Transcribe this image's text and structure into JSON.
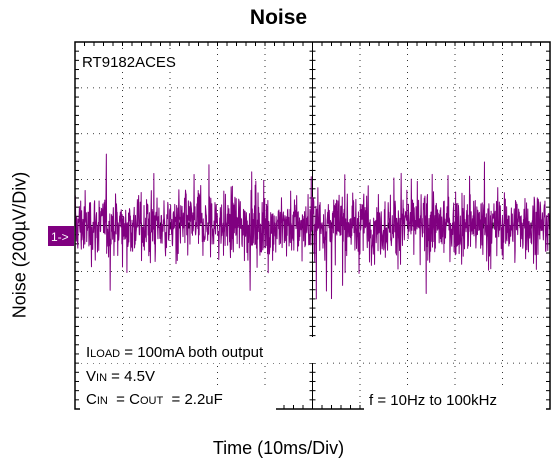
{
  "chart_data": {
    "type": "line",
    "title": "Noise",
    "xlabel": "Time  (10ms/Div)",
    "ylabel": "Noise  (200µV/Div)",
    "channel_marker": "1->",
    "device_label": "RT9182ACES",
    "annotations": {
      "iload": {
        "main": "I",
        "sub": "LOAD",
        "rest": " = 100mA both output"
      },
      "vin": {
        "main": "V",
        "sub": "IN",
        "rest": " = 4.5V"
      },
      "cin_cout": {
        "c1": "C",
        "c1sub": "IN",
        "mid": "  = C",
        "c2sub": "OUT",
        "rest": "  = 2.2uF"
      },
      "bandwidth": "f = 10Hz to 100kHz"
    },
    "x_divisions": 10,
    "y_divisions": 8,
    "xlim_div": [
      0,
      10
    ],
    "ylim_div": [
      -4,
      4
    ],
    "trace_baseline_div": 0,
    "trace_peak_to_peak_div": 3.2,
    "trace_color": "#800080",
    "grid": true
  }
}
